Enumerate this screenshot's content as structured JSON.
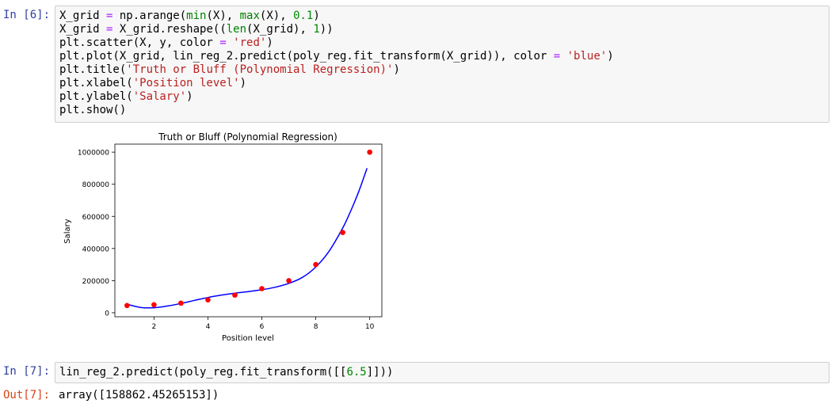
{
  "cell6": {
    "prompt": "In [6]:",
    "code_lines": [
      [
        {
          "t": "X_grid "
        },
        {
          "t": "=",
          "c": "k-op"
        },
        {
          "t": " np.arange("
        },
        {
          "t": "min",
          "c": "k-builtin"
        },
        {
          "t": "(X), "
        },
        {
          "t": "max",
          "c": "k-builtin"
        },
        {
          "t": "(X), "
        },
        {
          "t": "0.1",
          "c": "k-num"
        },
        {
          "t": ")"
        }
      ],
      [
        {
          "t": "X_grid "
        },
        {
          "t": "=",
          "c": "k-op"
        },
        {
          "t": " X_grid.reshape(("
        },
        {
          "t": "len",
          "c": "k-builtin"
        },
        {
          "t": "(X_grid), "
        },
        {
          "t": "1",
          "c": "k-num"
        },
        {
          "t": "))"
        }
      ],
      [
        {
          "t": "plt.scatter(X, y, color "
        },
        {
          "t": "=",
          "c": "k-op"
        },
        {
          "t": " "
        },
        {
          "t": "'red'",
          "c": "k-str"
        },
        {
          "t": ")"
        }
      ],
      [
        {
          "t": "plt.plot(X_grid, lin_reg_2.predict(poly_reg.fit_transform(X_grid)), color "
        },
        {
          "t": "=",
          "c": "k-op"
        },
        {
          "t": " "
        },
        {
          "t": "'blue'",
          "c": "k-str"
        },
        {
          "t": ")"
        }
      ],
      [
        {
          "t": "plt.title("
        },
        {
          "t": "'Truth or Bluff (Polynomial Regression)'",
          "c": "k-str"
        },
        {
          "t": ")"
        }
      ],
      [
        {
          "t": "plt.xlabel("
        },
        {
          "t": "'Position level'",
          "c": "k-str"
        },
        {
          "t": ")"
        }
      ],
      [
        {
          "t": "plt.ylabel("
        },
        {
          "t": "'Salary'",
          "c": "k-str"
        },
        {
          "t": ")"
        }
      ],
      [
        {
          "t": "plt.show()"
        }
      ]
    ]
  },
  "chart_data": {
    "type": "scatter",
    "title": "Truth or Bluff (Polynomial Regression)",
    "xlabel": "Position level",
    "ylabel": "Salary",
    "xlim": [
      0.55,
      10.45
    ],
    "ylim": [
      -25000,
      1050000
    ],
    "xticks": [
      2,
      4,
      6,
      8,
      10
    ],
    "yticks": [
      0,
      200000,
      400000,
      600000,
      800000,
      1000000
    ],
    "scatter_color": "#ff0000",
    "line_color": "#0000ff",
    "series": [
      {
        "type": "scatter",
        "x": [
          1,
          2,
          3,
          4,
          5,
          6,
          7,
          8,
          9,
          10
        ],
        "y": [
          45000,
          50000,
          60000,
          80000,
          110000,
          150000,
          200000,
          300000,
          500000,
          1000000
        ]
      },
      {
        "type": "line",
        "x": [
          1.0,
          1.5,
          2.0,
          2.5,
          3.0,
          3.5,
          4.0,
          4.5,
          5.0,
          5.5,
          6.0,
          6.5,
          7.0,
          7.5,
          8.0,
          8.5,
          9.0,
          9.3,
          9.6,
          9.9
        ],
        "y": [
          53000,
          33000,
          31000,
          42000,
          58000,
          77000,
          95000,
          110000,
          122000,
          132000,
          143000,
          159000,
          183000,
          220000,
          285000,
          385000,
          528000,
          636000,
          758000,
          900000
        ]
      }
    ]
  },
  "cell7": {
    "prompt": "In [7]:",
    "code_lines": [
      [
        {
          "t": "lin_reg_2.predict(poly_reg.fit_transform([["
        },
        {
          "t": "6.5",
          "c": "k-num"
        },
        {
          "t": "]]))"
        }
      ]
    ],
    "out_prompt": "Out[7]:",
    "output": "array([158862.45265153])"
  }
}
